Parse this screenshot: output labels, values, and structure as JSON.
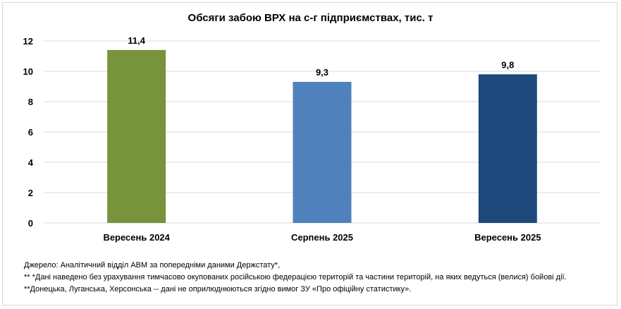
{
  "chart_data": {
    "type": "bar",
    "title": "Обсяги забою ВРХ на с-г підприємствах, тис. т",
    "categories": [
      "Вересень 2024",
      "Серпень 2025",
      "Вересень 2025"
    ],
    "values": [
      11.4,
      9.3,
      9.8
    ],
    "value_labels": [
      "11,4",
      "9,3",
      "9,8"
    ],
    "colors": [
      "#77933c",
      "#4f81bd",
      "#1f497d"
    ],
    "ylim": [
      0,
      12
    ],
    "yticks": [
      0,
      2,
      4,
      6,
      8,
      10,
      12
    ],
    "grid": true,
    "xlabel": "",
    "ylabel": ""
  },
  "notes": [
    "Джерело:  Аналітичний відділ АВМ за попередніми даними Держстату*,",
    "** *Дані наведено  без урахування тимчасово окупованих російською федерацією територій та частини територій, на яких ведуться  (велися) бойові дії.",
    "**Донецька,  Луганська, Херсонська -- дані не оприлюднюються  згідно вимог ЗУ «Про офіційну статистику»."
  ]
}
